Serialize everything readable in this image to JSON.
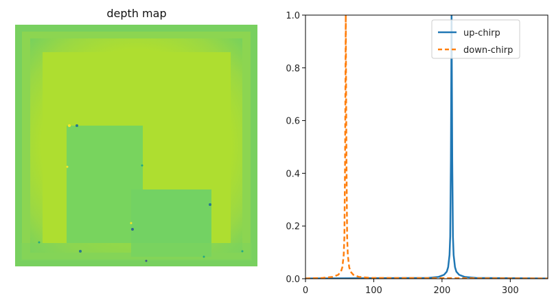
{
  "chart_data": [
    {
      "type": "heatmap",
      "title": "depth map",
      "colormap": "viridis",
      "colors": {
        "border_light": "#8fd45a",
        "border_edge": "#6fcf63",
        "background": "#aede30",
        "box": "#78d45e",
        "box_edge": "#6ccd66"
      }
    },
    {
      "type": "line",
      "title": "",
      "xlabel": "",
      "ylabel": "",
      "xlim": [
        0,
        355
      ],
      "ylim": [
        0,
        1.0
      ],
      "xticks": [
        0,
        100,
        200,
        300
      ],
      "yticks": [
        0.0,
        0.2,
        0.4,
        0.6,
        0.8,
        1.0
      ],
      "xtick_labels": [
        "0",
        "100",
        "200",
        "300"
      ],
      "ytick_labels": [
        "0.0",
        "0.2",
        "0.4",
        "0.6",
        "0.8",
        "1.0"
      ],
      "grid": false,
      "legend_position": "top-right",
      "series": [
        {
          "name": "up-chirp",
          "color": "#1f77b4",
          "style": "solid",
          "x": [
            0,
            180,
            195,
            203,
            207,
            209,
            211,
            212,
            213,
            214,
            215,
            216,
            217,
            219,
            221,
            225,
            233,
            250,
            355
          ],
          "y": [
            0.001,
            0.003,
            0.007,
            0.015,
            0.027,
            0.044,
            0.09,
            0.16,
            0.45,
            1.0,
            0.45,
            0.16,
            0.09,
            0.044,
            0.027,
            0.015,
            0.007,
            0.003,
            0.001
          ]
        },
        {
          "name": "down-chirp",
          "color": "#ff7f0e",
          "style": "dashed",
          "x": [
            0,
            25,
            40,
            48,
            52,
            54,
            56,
            57,
            58,
            59,
            60,
            61,
            62,
            64,
            66,
            70,
            78,
            95,
            355
          ],
          "y": [
            0.001,
            0.003,
            0.007,
            0.015,
            0.027,
            0.044,
            0.09,
            0.16,
            0.45,
            1.0,
            0.45,
            0.16,
            0.09,
            0.044,
            0.027,
            0.015,
            0.007,
            0.003,
            0.001
          ]
        }
      ]
    }
  ]
}
